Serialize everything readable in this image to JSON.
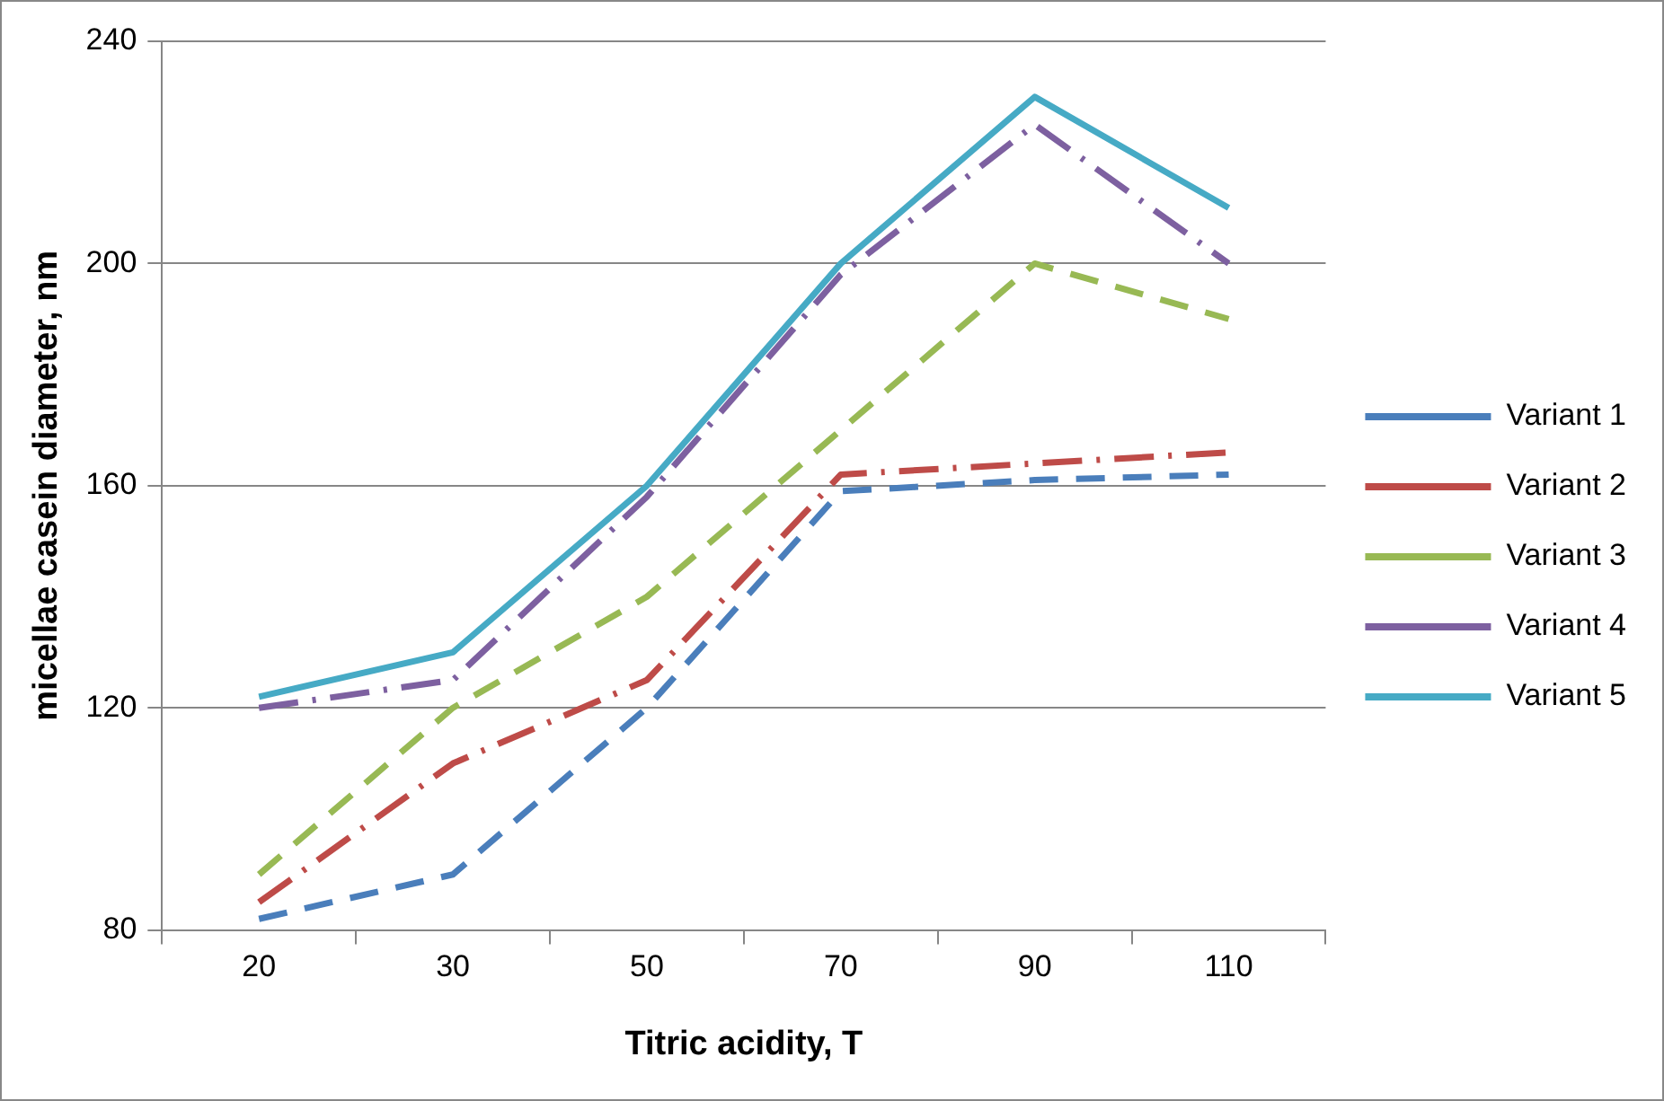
{
  "chart_data": {
    "type": "line",
    "xlabel": "Titric acidity, T",
    "ylabel": "micellae casein diameter, nm",
    "categories": [
      "20",
      "30",
      "50",
      "70",
      "90",
      "110"
    ],
    "series": [
      {
        "name": "Variant 1",
        "color": "#4a7ebb",
        "line_style": "dashed",
        "values": [
          82,
          90,
          120,
          159,
          161,
          162
        ]
      },
      {
        "name": "Variant 2",
        "color": "#be4b48",
        "line_style": "dashdot",
        "values": [
          85,
          110,
          125,
          162,
          164,
          166
        ]
      },
      {
        "name": "Variant 3",
        "color": "#98b954",
        "line_style": "dashed",
        "values": [
          90,
          120,
          140,
          170,
          200,
          190
        ]
      },
      {
        "name": "Variant 4",
        "color": "#7d60a0",
        "line_style": "dashdot",
        "values": [
          120,
          125,
          158,
          198,
          225,
          200
        ]
      },
      {
        "name": "Variant 5",
        "color": "#46aac5",
        "line_style": "solid",
        "values": [
          122,
          130,
          160,
          200,
          230,
          210
        ]
      }
    ],
    "ylim": [
      80,
      240
    ],
    "yticks": [
      80,
      120,
      160,
      200,
      240
    ],
    "grid": "y",
    "legend": "right",
    "marker": "none"
  }
}
